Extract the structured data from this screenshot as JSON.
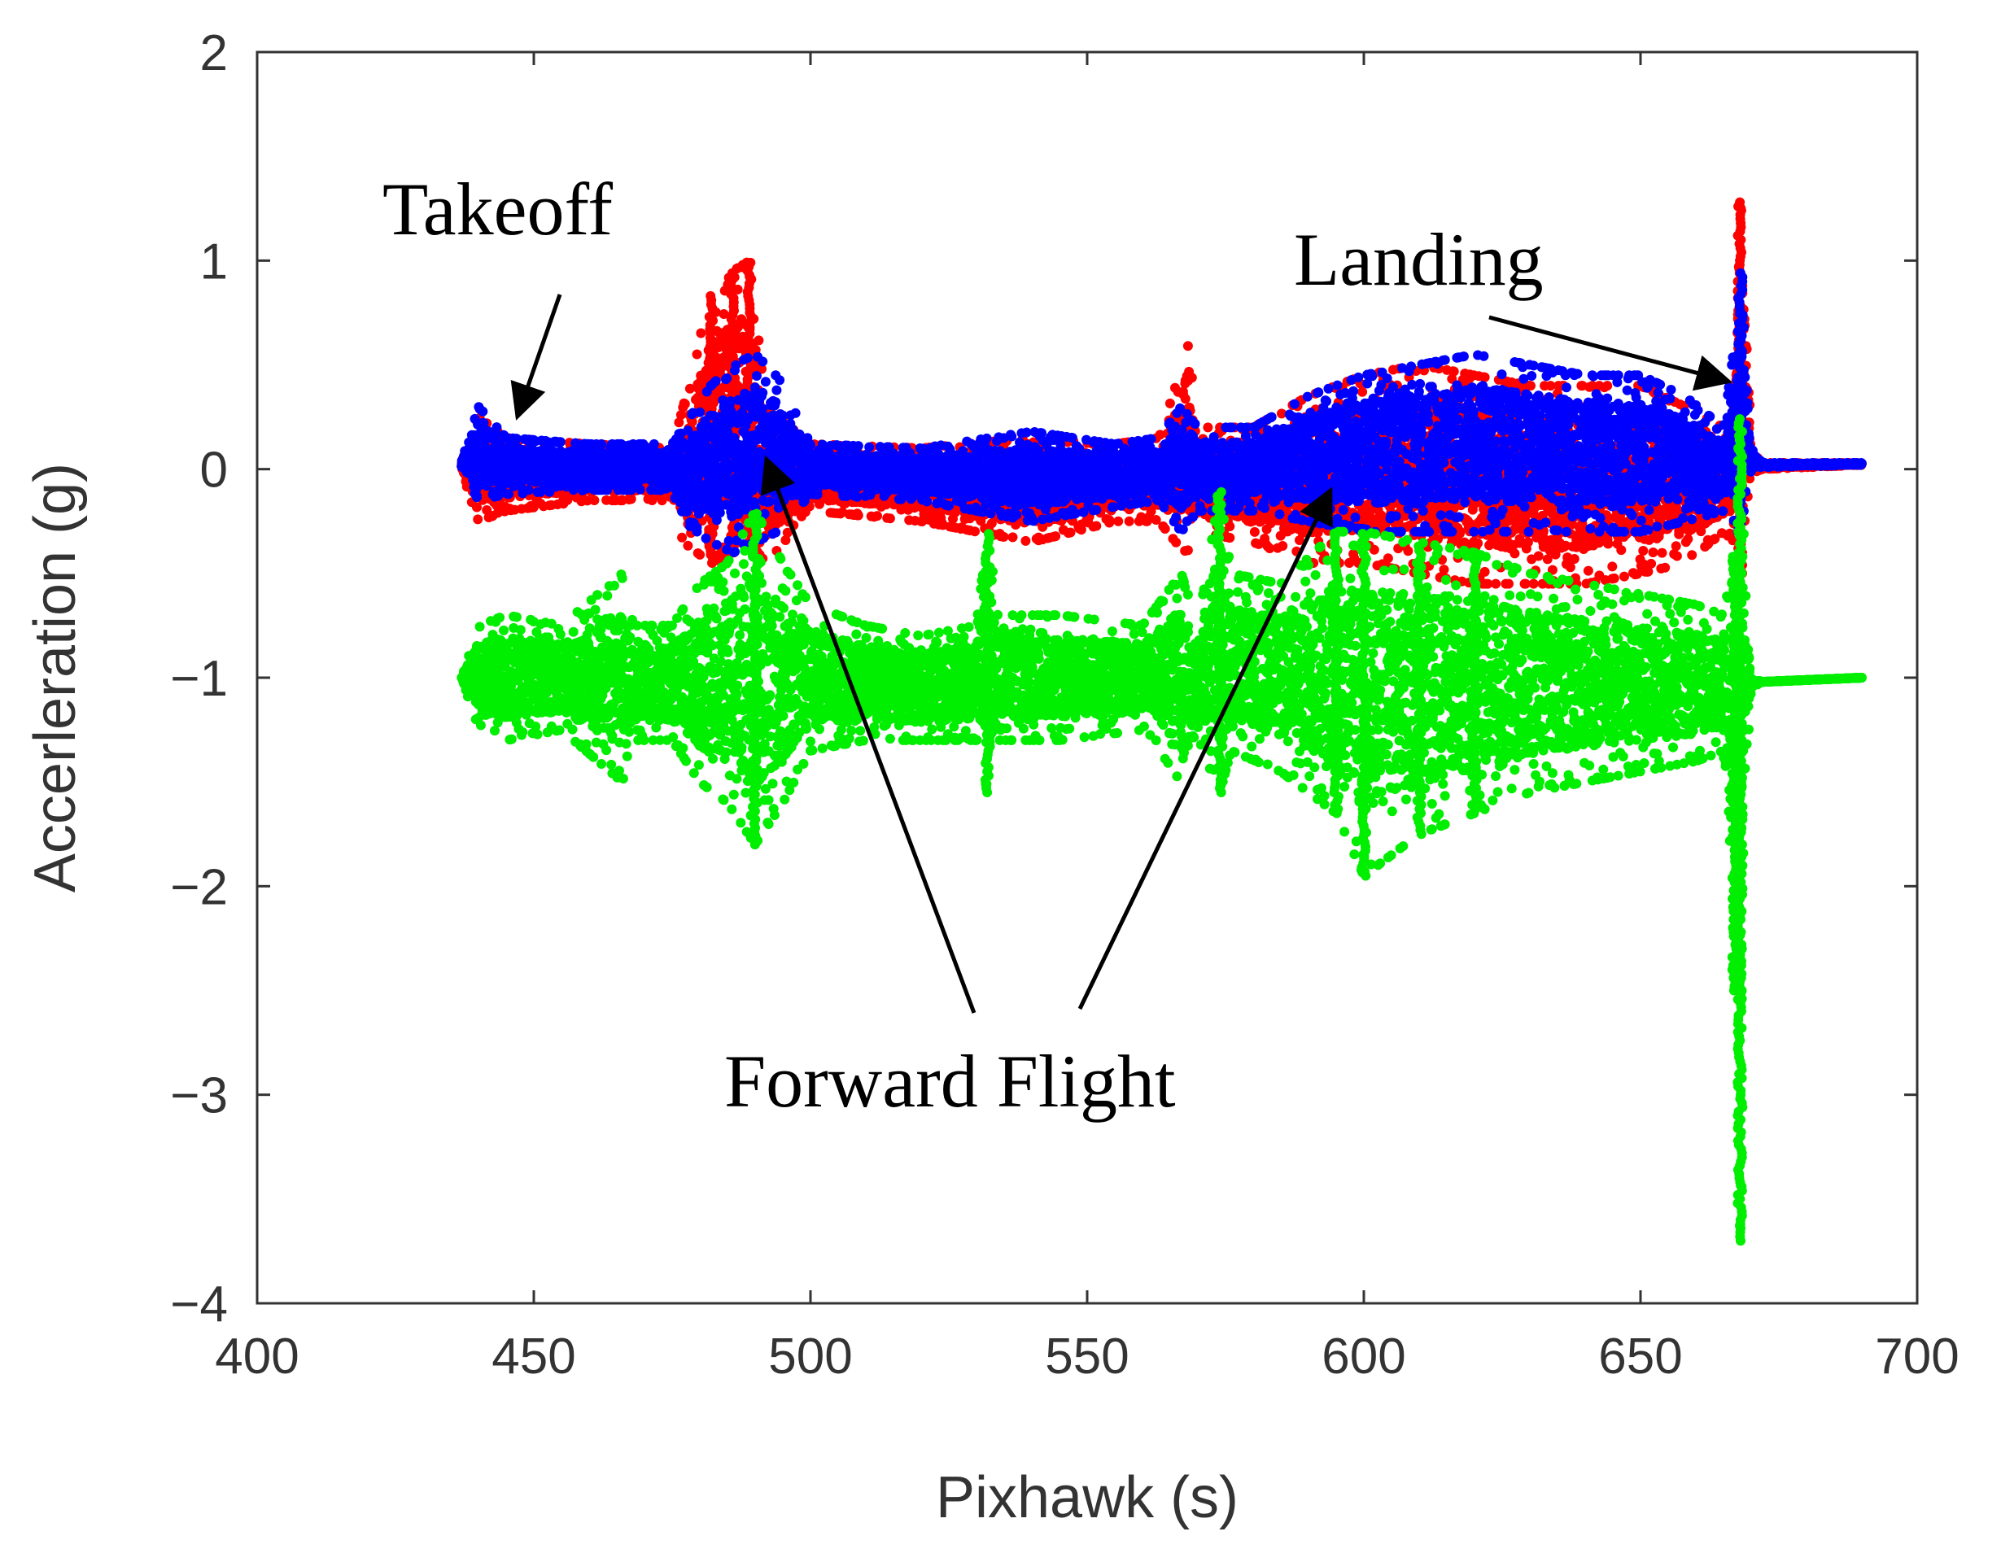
{
  "chart_data": {
    "type": "scatter",
    "title": "",
    "xlabel": "Pixhawk (s)",
    "ylabel": "Accerleration (g)",
    "xlim": [
      400,
      700
    ],
    "ylim": [
      -4,
      2
    ],
    "xticks": [
      400,
      450,
      500,
      550,
      600,
      650,
      700
    ],
    "yticks": [
      -4,
      -3,
      -2,
      -1,
      0,
      1,
      2
    ],
    "xtick_labels": [
      "400",
      "450",
      "500",
      "550",
      "600",
      "650",
      "700"
    ],
    "ytick_labels": [
      "−4",
      "−3",
      "−2",
      "−1",
      "0",
      "1",
      "2"
    ],
    "grid": false,
    "legend": null,
    "series": [
      {
        "color": "#ff0000",
        "envelope": {
          "x": [
            437,
            440,
            445,
            460,
            475,
            477,
            482,
            486,
            489,
            492,
            500,
            520,
            540,
            555,
            563,
            566,
            568,
            570,
            580,
            590,
            600,
            610,
            620,
            630,
            640,
            650,
            658,
            665,
            667,
            668,
            669,
            670,
            672,
            690
          ],
          "upper": [
            0.05,
            0.25,
            0.15,
            0.12,
            0.1,
            0.3,
            0.85,
            0.95,
            1.0,
            0.3,
            0.12,
            0.1,
            0.15,
            0.12,
            0.15,
            0.4,
            0.65,
            0.2,
            0.2,
            0.35,
            0.45,
            0.5,
            0.45,
            0.4,
            0.4,
            0.4,
            0.3,
            0.2,
            0.5,
            1.3,
            0.9,
            0.1,
            0.03,
            0.03
          ],
          "lower": [
            -0.02,
            -0.25,
            -0.2,
            -0.15,
            -0.15,
            -0.35,
            -0.45,
            -0.4,
            -0.35,
            -0.45,
            -0.2,
            -0.25,
            -0.35,
            -0.25,
            -0.25,
            -0.35,
            -0.4,
            -0.3,
            -0.35,
            -0.45,
            -0.45,
            -0.5,
            -0.55,
            -0.55,
            -0.55,
            -0.5,
            -0.45,
            -0.3,
            -0.35,
            -0.5,
            -0.2,
            -0.02,
            0.0,
            0.02
          ]
        }
      },
      {
        "color": "#0000ff",
        "envelope": {
          "x": [
            437,
            440,
            445,
            460,
            475,
            477,
            482,
            486,
            490,
            494,
            500,
            520,
            540,
            555,
            563,
            567,
            570,
            580,
            590,
            600,
            610,
            620,
            630,
            640,
            650,
            658,
            665,
            667,
            668,
            669,
            670,
            672,
            690
          ],
          "upper": [
            0.04,
            0.3,
            0.15,
            0.12,
            0.12,
            0.2,
            0.4,
            0.5,
            0.55,
            0.45,
            0.12,
            0.1,
            0.18,
            0.12,
            0.15,
            0.3,
            0.2,
            0.2,
            0.35,
            0.45,
            0.5,
            0.55,
            0.5,
            0.45,
            0.45,
            0.35,
            0.2,
            0.6,
            0.95,
            0.6,
            0.1,
            0.03,
            0.03
          ],
          "lower": [
            0.0,
            -0.15,
            -0.12,
            -0.1,
            -0.1,
            -0.25,
            -0.35,
            -0.4,
            -0.35,
            -0.3,
            -0.12,
            -0.15,
            -0.25,
            -0.18,
            -0.15,
            -0.3,
            -0.2,
            -0.2,
            -0.25,
            -0.3,
            -0.3,
            -0.3,
            -0.3,
            -0.3,
            -0.3,
            -0.25,
            -0.2,
            -0.25,
            -0.3,
            -0.15,
            0.0,
            0.01,
            0.02
          ]
        }
      },
      {
        "color": "#00ee00",
        "envelope": {
          "x": [
            437,
            440,
            445,
            455,
            466,
            468,
            475,
            480,
            485,
            490,
            495,
            500,
            510,
            520,
            530,
            532,
            534,
            545,
            560,
            567,
            570,
            574,
            576,
            585,
            595,
            600,
            610,
            620,
            630,
            640,
            650,
            660,
            665,
            667,
            668,
            669,
            670,
            672,
            690
          ],
          "upper": [
            -1.0,
            -0.75,
            -0.7,
            -0.75,
            -0.5,
            -0.75,
            -0.75,
            -0.55,
            -0.45,
            -0.2,
            -0.45,
            -0.65,
            -0.75,
            -0.8,
            -0.75,
            -0.3,
            -0.7,
            -0.7,
            -0.75,
            -0.5,
            -0.75,
            -0.1,
            -0.5,
            -0.55,
            -0.3,
            -0.3,
            -0.35,
            -0.4,
            -0.5,
            -0.55,
            -0.6,
            -0.65,
            -0.7,
            -0.4,
            0.25,
            -0.6,
            -1.0,
            -1.02,
            -1.0
          ],
          "lower": [
            -1.0,
            -1.25,
            -1.3,
            -1.25,
            -1.5,
            -1.3,
            -1.3,
            -1.5,
            -1.6,
            -1.8,
            -1.6,
            -1.35,
            -1.3,
            -1.3,
            -1.3,
            -1.55,
            -1.3,
            -1.3,
            -1.25,
            -1.5,
            -1.3,
            -1.55,
            -1.35,
            -1.45,
            -1.65,
            -1.95,
            -1.75,
            -1.65,
            -1.55,
            -1.5,
            -1.45,
            -1.4,
            -1.35,
            -2.5,
            -3.7,
            -1.5,
            -1.05,
            -1.02,
            -1.0
          ]
        }
      }
    ],
    "annotations": [
      {
        "text": "Takeoff",
        "arrow_to": [
          447,
          0.25
        ]
      },
      {
        "text": "Landing",
        "arrow_to": [
          666,
          0.42
        ]
      },
      {
        "text": "Forward Flight",
        "arrow_to": [
          [
            492,
            0.05
          ],
          [
            594,
            -0.1
          ]
        ]
      }
    ]
  }
}
